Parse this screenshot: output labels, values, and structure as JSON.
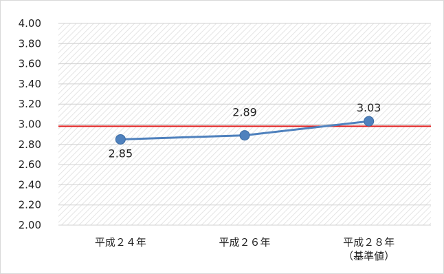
{
  "chart_data": {
    "type": "line",
    "title": "",
    "xlabel": "",
    "ylabel": "",
    "categories": [
      "平成２４年",
      "平成２６年",
      "平成２８年\n（基準値）"
    ],
    "series": [
      {
        "values": [
          2.85,
          2.89,
          3.03
        ],
        "color": "#4f81bd",
        "data_labels": [
          "2.85",
          "2.89",
          "3.03"
        ]
      }
    ],
    "reference_line": {
      "value": 2.98,
      "color": "#e02020"
    },
    "ylim": [
      2.0,
      4.0
    ],
    "yticks": [
      "2.00",
      "2.20",
      "2.40",
      "2.60",
      "2.80",
      "3.00",
      "3.20",
      "3.40",
      "3.60",
      "3.80",
      "4.00"
    ],
    "grid": true,
    "legend": "none",
    "plot_background": "hatched"
  }
}
